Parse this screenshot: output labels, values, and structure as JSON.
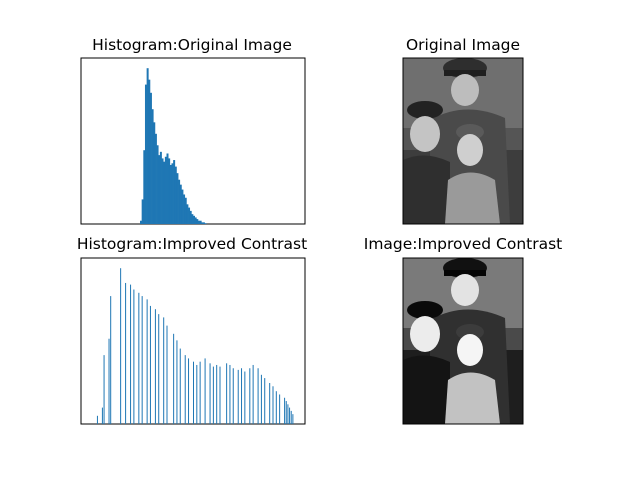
{
  "figure": {
    "background": "#ffffff"
  },
  "chart_data": [
    {
      "type": "bar",
      "title": "Histogram:Original Image",
      "xlabel": "",
      "ylabel": "",
      "axes_visible": false,
      "color": "#1f77b4",
      "xlim": [
        0,
        256
      ],
      "ylim": [
        0,
        1.0
      ],
      "note_y": "no tick labels shown; values are relative bar heights",
      "bins": {
        "x": [
          64,
          66,
          68,
          70,
          72,
          74,
          76,
          78,
          80,
          82,
          84,
          86,
          88,
          90,
          92,
          94,
          96,
          98,
          100,
          102,
          104,
          106,
          108,
          110,
          112,
          114,
          116,
          118,
          120,
          122,
          124,
          126,
          128,
          130,
          132,
          134,
          136,
          138,
          140,
          142
        ],
        "values": [
          0.02,
          0.15,
          0.45,
          0.85,
          0.95,
          0.88,
          0.8,
          0.7,
          0.62,
          0.55,
          0.48,
          0.42,
          0.44,
          0.4,
          0.38,
          0.41,
          0.43,
          0.4,
          0.36,
          0.37,
          0.39,
          0.35,
          0.31,
          0.27,
          0.24,
          0.21,
          0.18,
          0.16,
          0.12,
          0.1,
          0.08,
          0.06,
          0.05,
          0.04,
          0.03,
          0.02,
          0.02,
          0.01,
          0.01,
          0.005
        ]
      }
    },
    {
      "type": "bar",
      "title": "Histogram:Improved Contrast",
      "xlabel": "",
      "ylabel": "",
      "axes_visible": false,
      "color": "#1f77b4",
      "xlim": [
        0,
        256
      ],
      "ylim": [
        0,
        1.0
      ],
      "note_y": "no tick labels shown; values are relative bar heights",
      "bins": {
        "x": [
          12,
          18,
          20,
          26,
          28,
          40,
          46,
          52,
          56,
          62,
          66,
          72,
          76,
          82,
          86,
          92,
          96,
          104,
          108,
          112,
          118,
          122,
          128,
          132,
          136,
          142,
          148,
          152,
          156,
          160,
          168,
          172,
          176,
          182,
          186,
          190,
          196,
          200,
          206,
          210,
          214,
          220,
          224,
          228,
          232,
          238,
          240,
          242,
          244,
          246,
          248
        ],
        "values": [
          0.05,
          0.1,
          0.42,
          0.52,
          0.78,
          0.95,
          0.86,
          0.85,
          0.82,
          0.8,
          0.78,
          0.76,
          0.72,
          0.7,
          0.67,
          0.65,
          0.6,
          0.55,
          0.51,
          0.46,
          0.42,
          0.4,
          0.38,
          0.36,
          0.38,
          0.4,
          0.37,
          0.35,
          0.36,
          0.35,
          0.37,
          0.36,
          0.34,
          0.33,
          0.34,
          0.32,
          0.34,
          0.36,
          0.34,
          0.3,
          0.28,
          0.25,
          0.23,
          0.2,
          0.18,
          0.16,
          0.14,
          0.12,
          0.1,
          0.08,
          0.06
        ]
      }
    }
  ],
  "images": [
    {
      "title": "Original Image",
      "subject": "grayscale photo of a family: a man in a military peaked cap at the top, a woman on the left and a young girl in front",
      "contrast": "low"
    },
    {
      "title": "Image:Improved Contrast",
      "subject": "grayscale photo of a family: a man in a military peaked cap at the top, a woman on the left and a young girl in front",
      "contrast": "high"
    }
  ]
}
